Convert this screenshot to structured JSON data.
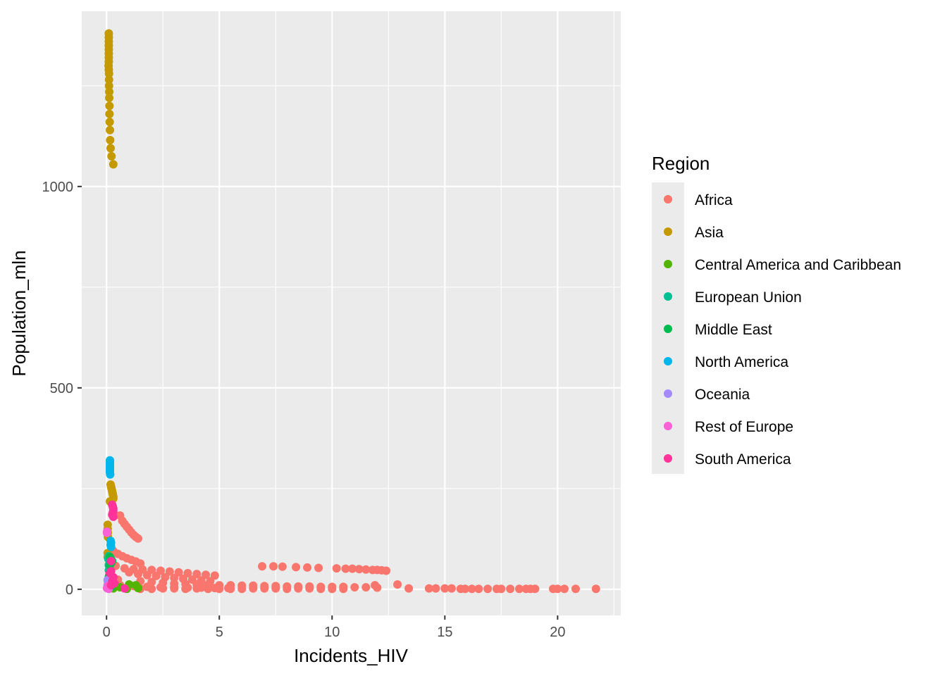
{
  "chart_data": {
    "type": "scatter",
    "xlabel": "Incidents_HIV",
    "ylabel": "Population_mln",
    "xlim": [
      -1.1,
      22.8
    ],
    "ylim": [
      -65,
      1435
    ],
    "x_ticks": [
      0,
      5,
      10,
      15,
      20
    ],
    "x_tick_labels": [
      "0",
      "5",
      "10",
      "15",
      "20"
    ],
    "y_ticks": [
      0,
      500,
      1000
    ],
    "y_tick_labels": [
      "0",
      "500",
      "1000"
    ],
    "grid": true,
    "legend": {
      "title": "Region",
      "position": "right"
    },
    "series": [
      {
        "name": "Africa",
        "color": "#F8766D",
        "points": [
          [
            6.9,
            57
          ],
          [
            7.4,
            57
          ],
          [
            7.8,
            56
          ],
          [
            8.4,
            55
          ],
          [
            8.9,
            54
          ],
          [
            9.4,
            53
          ],
          [
            10.2,
            52
          ],
          [
            10.6,
            51
          ],
          [
            10.9,
            51
          ],
          [
            11.2,
            50
          ],
          [
            11.5,
            49
          ],
          [
            11.8,
            48
          ],
          [
            12.0,
            48
          ],
          [
            12.2,
            47
          ],
          [
            12.4,
            46
          ],
          [
            0.6,
            183
          ],
          [
            0.7,
            170
          ],
          [
            0.8,
            162
          ],
          [
            0.9,
            155
          ],
          [
            1.0,
            148
          ],
          [
            1.1,
            141
          ],
          [
            1.2,
            135
          ],
          [
            1.3,
            130
          ],
          [
            1.4,
            126
          ],
          [
            0.3,
            95
          ],
          [
            0.5,
            88
          ],
          [
            0.7,
            82
          ],
          [
            0.9,
            77
          ],
          [
            1.1,
            73
          ],
          [
            1.3,
            69
          ],
          [
            1.5,
            64
          ],
          [
            0.4,
            58
          ],
          [
            0.8,
            52
          ],
          [
            1.2,
            50
          ],
          [
            1.6,
            49
          ],
          [
            2.0,
            48
          ],
          [
            2.4,
            46
          ],
          [
            2.8,
            44
          ],
          [
            3.2,
            42
          ],
          [
            3.6,
            40
          ],
          [
            4.0,
            38
          ],
          [
            4.4,
            36
          ],
          [
            4.8,
            34
          ],
          [
            1.0,
            42
          ],
          [
            1.4,
            38
          ],
          [
            1.8,
            35
          ],
          [
            2.2,
            33
          ],
          [
            2.6,
            30
          ],
          [
            3.0,
            28
          ],
          [
            3.4,
            26
          ],
          [
            3.8,
            24
          ],
          [
            4.2,
            22
          ],
          [
            4.6,
            20
          ],
          [
            0.2,
            30
          ],
          [
            0.5,
            24
          ],
          [
            1.5,
            20
          ],
          [
            2.0,
            18
          ],
          [
            2.5,
            16
          ],
          [
            3.0,
            14
          ],
          [
            3.5,
            13
          ],
          [
            4.0,
            12
          ],
          [
            4.5,
            11
          ],
          [
            5.0,
            10
          ],
          [
            5.5,
            10
          ],
          [
            6.0,
            9
          ],
          [
            6.5,
            9
          ],
          [
            7.0,
            8
          ],
          [
            7.5,
            8
          ],
          [
            8.0,
            7
          ],
          [
            8.5,
            7
          ],
          [
            9.0,
            7
          ],
          [
            9.5,
            6
          ],
          [
            10.0,
            6
          ],
          [
            10.5,
            6
          ],
          [
            11.0,
            5
          ],
          [
            11.5,
            5
          ],
          [
            12.0,
            4
          ],
          [
            0.6,
            10
          ],
          [
            1.2,
            8
          ],
          [
            1.8,
            6
          ],
          [
            2.4,
            5
          ],
          [
            3.0,
            5
          ],
          [
            3.6,
            4
          ],
          [
            4.2,
            4
          ],
          [
            4.8,
            3
          ],
          [
            5.4,
            3
          ],
          [
            12.9,
            12
          ],
          [
            11.9,
            10
          ],
          [
            13.4,
            2
          ],
          [
            14.3,
            2
          ],
          [
            14.6,
            2
          ],
          [
            15.0,
            2
          ],
          [
            15.3,
            2
          ],
          [
            15.7,
            1
          ],
          [
            15.9,
            1
          ],
          [
            16.2,
            1
          ],
          [
            16.5,
            1
          ],
          [
            16.9,
            1
          ],
          [
            17.3,
            1
          ],
          [
            17.5,
            1
          ],
          [
            17.9,
            1
          ],
          [
            18.3,
            1
          ],
          [
            18.6,
            1
          ],
          [
            18.8,
            1
          ],
          [
            19.0,
            1
          ],
          [
            19.8,
            1
          ],
          [
            20.0,
            1
          ],
          [
            20.3,
            1
          ],
          [
            20.8,
            1
          ],
          [
            21.7,
            1
          ],
          [
            1.5,
            1
          ],
          [
            2.0,
            1
          ],
          [
            2.5,
            2
          ],
          [
            3.0,
            2
          ],
          [
            3.5,
            1
          ],
          [
            4.0,
            2
          ],
          [
            4.5,
            1
          ],
          [
            5.0,
            1
          ],
          [
            5.5,
            1
          ],
          [
            6.0,
            1
          ],
          [
            6.5,
            2
          ],
          [
            7.0,
            2
          ],
          [
            7.5,
            2
          ],
          [
            8.0,
            1
          ],
          [
            8.5,
            2
          ],
          [
            9.0,
            2
          ],
          [
            9.5,
            1
          ],
          [
            10.0,
            1
          ],
          [
            10.5,
            1
          ]
        ]
      },
      {
        "name": "Asia",
        "color": "#C49A00",
        "points": [
          [
            0.1,
            1380
          ],
          [
            0.1,
            1370
          ],
          [
            0.1,
            1360
          ],
          [
            0.1,
            1350
          ],
          [
            0.1,
            1340
          ],
          [
            0.1,
            1330
          ],
          [
            0.1,
            1320
          ],
          [
            0.1,
            1310
          ],
          [
            0.09,
            1300
          ],
          [
            0.1,
            1290
          ],
          [
            0.11,
            1280
          ],
          [
            0.11,
            1265
          ],
          [
            0.11,
            1250
          ],
          [
            0.12,
            1235
          ],
          [
            0.12,
            1220
          ],
          [
            0.13,
            1200
          ],
          [
            0.13,
            1180
          ],
          [
            0.14,
            1160
          ],
          [
            0.15,
            1140
          ],
          [
            0.16,
            1115
          ],
          [
            0.18,
            1095
          ],
          [
            0.22,
            1075
          ],
          [
            0.3,
            1055
          ],
          [
            0.18,
            260
          ],
          [
            0.2,
            255
          ],
          [
            0.22,
            250
          ],
          [
            0.24,
            245
          ],
          [
            0.26,
            240
          ],
          [
            0.28,
            235
          ],
          [
            0.3,
            230
          ],
          [
            0.3,
            225
          ],
          [
            0.15,
            218
          ],
          [
            0.05,
            160
          ],
          [
            0.05,
            150
          ],
          [
            0.06,
            140
          ],
          [
            0.06,
            130
          ],
          [
            0.05,
            90
          ],
          [
            0.05,
            80
          ],
          [
            0.06,
            20
          ],
          [
            0.08,
            10
          ],
          [
            0.1,
            2
          ]
        ]
      },
      {
        "name": "Central America and Caribbean",
        "color": "#53B400",
        "points": [
          [
            1.0,
            12
          ],
          [
            1.3,
            10
          ],
          [
            0.6,
            5
          ],
          [
            1.4,
            3
          ],
          [
            0.9,
            1
          ],
          [
            0.2,
            8
          ],
          [
            0.3,
            2
          ]
        ]
      },
      {
        "name": "European Union",
        "color": "#00C094",
        "points": [
          [
            0.1,
            82
          ],
          [
            0.12,
            80
          ],
          [
            0.08,
            75
          ],
          [
            0.1,
            60
          ],
          [
            0.1,
            47
          ],
          [
            0.15,
            40
          ],
          [
            0.12,
            35
          ],
          [
            0.08,
            20
          ],
          [
            0.05,
            10
          ]
        ]
      },
      {
        "name": "Middle East",
        "color": "#00BB4E",
        "points": [
          [
            0.15,
            80
          ],
          [
            0.2,
            75
          ],
          [
            0.25,
            70
          ],
          [
            0.2,
            65
          ],
          [
            0.15,
            60
          ],
          [
            0.1,
            30
          ],
          [
            0.2,
            5
          ]
        ]
      },
      {
        "name": "North America",
        "color": "#00B6EB",
        "points": [
          [
            0.15,
            320
          ],
          [
            0.15,
            315
          ],
          [
            0.15,
            310
          ],
          [
            0.15,
            305
          ],
          [
            0.15,
            300
          ],
          [
            0.15,
            295
          ],
          [
            0.15,
            290
          ],
          [
            0.16,
            285
          ],
          [
            0.18,
            120
          ],
          [
            0.2,
            115
          ],
          [
            0.18,
            110
          ],
          [
            0.2,
            105
          ]
        ]
      },
      {
        "name": "Oceania",
        "color": "#A58AFF",
        "points": [
          [
            0.05,
            23
          ],
          [
            0.06,
            20
          ],
          [
            0.05,
            5
          ],
          [
            0.04,
            4
          ]
        ]
      },
      {
        "name": "Rest of Europe",
        "color": "#FB61D7",
        "points": [
          [
            0.02,
            143
          ],
          [
            0.02,
            140
          ],
          [
            0.05,
            8
          ],
          [
            0.05,
            5
          ],
          [
            0.02,
            3
          ],
          [
            0.05,
            2
          ],
          [
            0.1,
            1
          ]
        ]
      },
      {
        "name": "South America",
        "color": "#FF3399",
        "points": [
          [
            0.25,
            210
          ],
          [
            0.28,
            205
          ],
          [
            0.3,
            200
          ],
          [
            0.3,
            195
          ],
          [
            0.28,
            190
          ],
          [
            0.25,
            185
          ],
          [
            0.3,
            180
          ],
          [
            0.2,
            70
          ],
          [
            0.2,
            45
          ],
          [
            0.15,
            40
          ],
          [
            0.3,
            30
          ],
          [
            0.25,
            20
          ],
          [
            0.35,
            15
          ],
          [
            0.2,
            10
          ],
          [
            0.8,
            2
          ]
        ]
      }
    ]
  }
}
